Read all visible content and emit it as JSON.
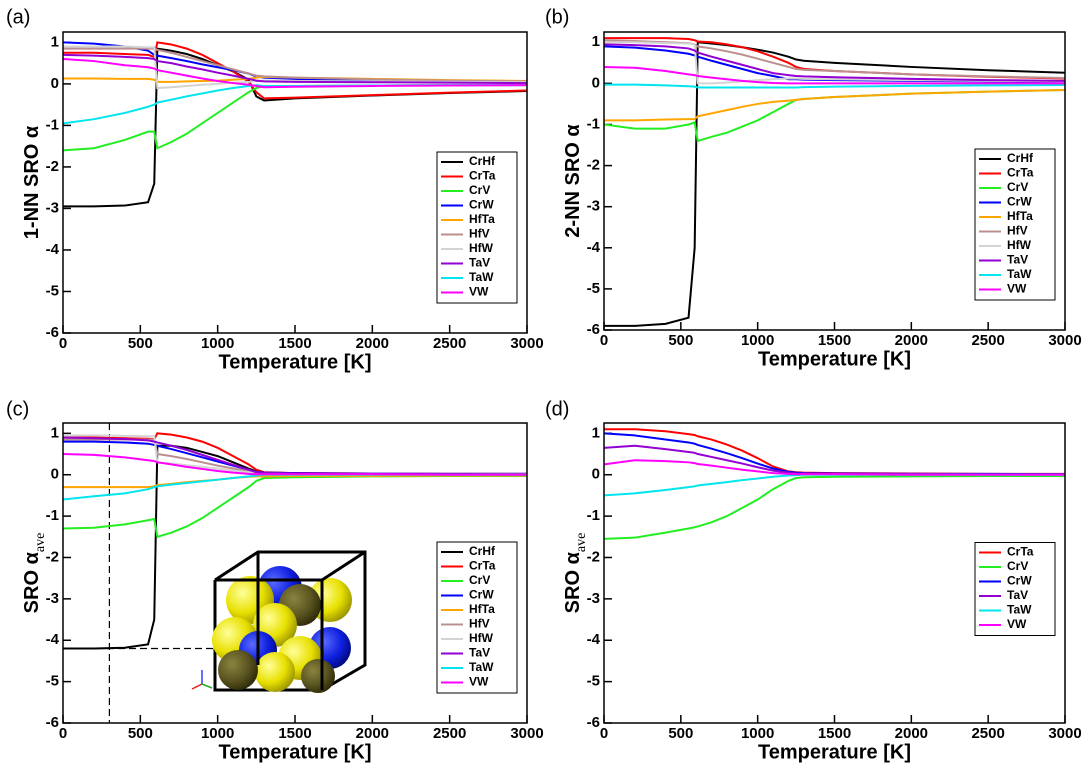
{
  "chart_data": [
    {
      "type": "line",
      "panel_label": "(a)",
      "y_label": "1-NN SRO α",
      "x_label": "Temperature [K]",
      "legend": "lower right",
      "xlim": [
        0,
        3000
      ],
      "ylim": [
        -6,
        1.25
      ],
      "xticks": [
        0,
        500,
        1000,
        1500,
        2000,
        2500,
        3000
      ],
      "yticks": [
        -6,
        -5,
        -4,
        -3,
        -2,
        -1,
        0,
        1
      ],
      "x": [
        0,
        200,
        400,
        550,
        590,
        610,
        700,
        800,
        900,
        1000,
        1100,
        1200,
        1250,
        1300,
        1500,
        2000,
        2500,
        3000
      ],
      "series": [
        {
          "name": "CrHf",
          "color": "#000000",
          "values": [
            -2.95,
            -2.95,
            -2.93,
            -2.85,
            -2.4,
            0.85,
            0.8,
            0.72,
            0.6,
            0.45,
            0.3,
            0.1,
            -0.3,
            -0.4,
            -0.35,
            -0.28,
            -0.22,
            -0.17
          ]
        },
        {
          "name": "CrTa",
          "color": "#ff0000",
          "values": [
            0.75,
            0.75,
            0.72,
            0.7,
            0.65,
            1.0,
            0.95,
            0.85,
            0.7,
            0.5,
            0.3,
            0.05,
            -0.2,
            -0.35,
            -0.33,
            -0.27,
            -0.21,
            -0.16
          ]
        },
        {
          "name": "CrV",
          "color": "#22ee22",
          "values": [
            -1.6,
            -1.55,
            -1.35,
            -1.15,
            -1.15,
            -1.55,
            -1.4,
            -1.2,
            -0.95,
            -0.7,
            -0.45,
            -0.2,
            -0.1,
            -0.05,
            -0.05,
            -0.04,
            -0.03,
            -0.03
          ]
        },
        {
          "name": "CrW",
          "color": "#0000ff",
          "values": [
            1.0,
            0.97,
            0.9,
            0.8,
            0.7,
            0.68,
            0.62,
            0.55,
            0.47,
            0.4,
            0.33,
            0.25,
            0.18,
            0.15,
            0.12,
            0.08,
            0.06,
            0.05
          ]
        },
        {
          "name": "HfTa",
          "color": "#ffa500",
          "values": [
            0.13,
            0.13,
            0.12,
            0.12,
            0.1,
            0.05,
            0.05,
            0.06,
            0.07,
            0.08,
            0.1,
            0.12,
            0.15,
            0.17,
            0.15,
            0.12,
            0.09,
            0.07
          ]
        },
        {
          "name": "HfV",
          "color": "#bc8f8f",
          "values": [
            0.85,
            0.85,
            0.85,
            0.85,
            0.85,
            0.82,
            0.75,
            0.65,
            0.55,
            0.45,
            0.35,
            0.25,
            0.2,
            0.18,
            0.15,
            0.11,
            0.08,
            0.06
          ]
        },
        {
          "name": "HfW",
          "color": "#d3d3d3",
          "values": [
            0.9,
            0.9,
            0.9,
            0.88,
            0.88,
            -0.1,
            -0.08,
            -0.05,
            -0.02,
            0,
            0.03,
            0.05,
            0.07,
            0.08,
            0.07,
            0.06,
            0.05,
            0.04
          ]
        },
        {
          "name": "TaV",
          "color": "#9400d3",
          "values": [
            0.7,
            0.68,
            0.65,
            0.62,
            0.6,
            0.55,
            0.5,
            0.42,
            0.35,
            0.27,
            0.2,
            0.12,
            0.08,
            0.06,
            0.05,
            0.04,
            0.03,
            0.02
          ]
        },
        {
          "name": "TaW",
          "color": "#00e5ee",
          "values": [
            -0.95,
            -0.85,
            -0.7,
            -0.55,
            -0.5,
            -0.45,
            -0.38,
            -0.3,
            -0.23,
            -0.16,
            -0.1,
            -0.05,
            -0.03,
            -0.05,
            -0.05,
            -0.04,
            -0.03,
            -0.03
          ]
        },
        {
          "name": "VW",
          "color": "#ff00ff",
          "values": [
            0.6,
            0.55,
            0.45,
            0.4,
            0.37,
            0.33,
            0.27,
            0.2,
            0.13,
            0.07,
            0.02,
            -0.02,
            -0.05,
            -0.08,
            -0.07,
            -0.05,
            -0.04,
            -0.03
          ]
        }
      ]
    },
    {
      "type": "line",
      "panel_label": "(b)",
      "y_label": "2-NN SRO α",
      "x_label": "Temperature [K]",
      "legend": "lower right",
      "xlim": [
        0,
        3000
      ],
      "ylim": [
        -6,
        1.25
      ],
      "xticks": [
        0,
        500,
        1000,
        1500,
        2000,
        2500,
        3000
      ],
      "yticks": [
        -6,
        -5,
        -4,
        -3,
        -2,
        -1,
        0,
        1
      ],
      "x": [
        0,
        200,
        400,
        550,
        590,
        610,
        700,
        800,
        900,
        1000,
        1100,
        1200,
        1250,
        1300,
        1500,
        2000,
        2500,
        3000
      ],
      "series": [
        {
          "name": "CrHf",
          "color": "#000000",
          "values": [
            -5.9,
            -5.9,
            -5.85,
            -5.7,
            -4,
            1.0,
            0.97,
            0.93,
            0.88,
            0.82,
            0.75,
            0.65,
            0.58,
            0.55,
            0.5,
            0.4,
            0.32,
            0.26
          ]
        },
        {
          "name": "CrTa",
          "color": "#ff0000",
          "values": [
            1.1,
            1.1,
            1.1,
            1.08,
            1.05,
            1.02,
            1.0,
            0.95,
            0.88,
            0.78,
            0.65,
            0.5,
            0.4,
            0.35,
            0.3,
            0.22,
            0.16,
            0.12
          ]
        },
        {
          "name": "CrV",
          "color": "#22ee22",
          "values": [
            -1.0,
            -1.1,
            -1.1,
            -1.0,
            -0.95,
            -1.4,
            -1.3,
            -1.2,
            -1.05,
            -0.9,
            -0.7,
            -0.5,
            -0.4,
            -0.38,
            -0.33,
            -0.25,
            -0.2,
            -0.16
          ]
        },
        {
          "name": "CrW",
          "color": "#0000ff",
          "values": [
            0.9,
            0.87,
            0.8,
            0.72,
            0.68,
            0.65,
            0.55,
            0.45,
            0.35,
            0.25,
            0.18,
            0.1,
            0.1,
            0.09,
            0.08,
            0.06,
            0.05,
            0.04
          ]
        },
        {
          "name": "HfTa",
          "color": "#ffa500",
          "values": [
            -0.9,
            -0.9,
            -0.88,
            -0.87,
            -0.87,
            -0.8,
            -0.73,
            -0.65,
            -0.57,
            -0.5,
            -0.45,
            -0.42,
            -0.4,
            -0.38,
            -0.33,
            -0.25,
            -0.2,
            -0.16
          ]
        },
        {
          "name": "HfV",
          "color": "#bc8f8f",
          "values": [
            1.05,
            1.03,
            1.0,
            0.98,
            0.95,
            0.9,
            0.85,
            0.78,
            0.7,
            0.6,
            0.5,
            0.4,
            0.35,
            0.33,
            0.3,
            0.22,
            0.17,
            0.13
          ]
        },
        {
          "name": "HfW",
          "color": "#d3d3d3",
          "values": [
            1.0,
            1.0,
            0.98,
            0.97,
            0.95,
            0.0,
            0.0,
            0.02,
            0.05,
            0.08,
            0.1,
            0.12,
            0.12,
            0.11,
            0.1,
            0.08,
            0.06,
            0.05
          ]
        },
        {
          "name": "TaV",
          "color": "#9400d3",
          "values": [
            0.95,
            0.93,
            0.9,
            0.85,
            0.8,
            0.75,
            0.65,
            0.55,
            0.45,
            0.35,
            0.25,
            0.2,
            0.18,
            0.17,
            0.15,
            0.11,
            0.08,
            0.06
          ]
        },
        {
          "name": "TaW",
          "color": "#00e5ee",
          "values": [
            -0.03,
            -0.03,
            -0.05,
            -0.07,
            -0.08,
            -0.1,
            -0.1,
            -0.1,
            -0.1,
            -0.1,
            -0.1,
            -0.1,
            -0.1,
            -0.09,
            -0.08,
            -0.06,
            -0.05,
            -0.04
          ]
        },
        {
          "name": "VW",
          "color": "#ff00ff",
          "values": [
            0.4,
            0.38,
            0.3,
            0.22,
            0.2,
            0.18,
            0.14,
            0.1,
            0.06,
            0.03,
            0.01,
            0,
            0,
            0,
            0,
            0,
            0,
            0
          ]
        }
      ]
    },
    {
      "type": "line",
      "panel_label": "(c)",
      "y_label": "SRO α",
      "y_label_subscript": "ave",
      "x_label": "Temperature [K]",
      "legend": "lower right",
      "xlim": [
        0,
        3000
      ],
      "ylim": [
        -6,
        1.25
      ],
      "xticks": [
        0,
        500,
        1000,
        1500,
        2000,
        2500,
        3000
      ],
      "yticks": [
        -6,
        -5,
        -4,
        -3,
        -2,
        -1,
        0,
        1
      ],
      "reference_lines": {
        "x": 300,
        "y": -4.2
      },
      "x": [
        0,
        200,
        400,
        550,
        590,
        610,
        700,
        800,
        900,
        1000,
        1100,
        1200,
        1250,
        1300,
        1500,
        2000,
        2500,
        3000
      ],
      "series": [
        {
          "name": "CrHf",
          "color": "#000000",
          "values": [
            -4.2,
            -4.2,
            -4.18,
            -4.1,
            -3.5,
            0.7,
            0.7,
            0.65,
            0.55,
            0.45,
            0.3,
            0.15,
            0.08,
            0.05,
            0.04,
            0.03,
            0.02,
            0.02
          ]
        },
        {
          "name": "CrTa",
          "color": "#ff0000",
          "values": [
            0.9,
            0.9,
            0.88,
            0.87,
            0.86,
            1.0,
            0.97,
            0.9,
            0.8,
            0.65,
            0.45,
            0.25,
            0.12,
            0.06,
            0.04,
            0.03,
            0.02,
            0.02
          ]
        },
        {
          "name": "CrV",
          "color": "#22ee22",
          "values": [
            -1.3,
            -1.28,
            -1.2,
            -1.1,
            -1.07,
            -1.5,
            -1.4,
            -1.25,
            -1.05,
            -0.8,
            -0.55,
            -0.3,
            -0.15,
            -0.08,
            -0.06,
            -0.04,
            -0.03,
            -0.03
          ]
        },
        {
          "name": "CrW",
          "color": "#0000ff",
          "values": [
            0.8,
            0.8,
            0.78,
            0.75,
            0.72,
            0.7,
            0.62,
            0.52,
            0.42,
            0.32,
            0.22,
            0.12,
            0.07,
            0.05,
            0.04,
            0.03,
            0.02,
            0.02
          ]
        },
        {
          "name": "HfTa",
          "color": "#ffa500",
          "values": [
            -0.3,
            -0.3,
            -0.3,
            -0.3,
            -0.28,
            -0.25,
            -0.22,
            -0.18,
            -0.15,
            -0.12,
            -0.08,
            -0.05,
            -0.04,
            -0.04,
            -0.03,
            -0.03,
            -0.02,
            -0.02
          ]
        },
        {
          "name": "HfV",
          "color": "#bc8f8f",
          "values": [
            0.85,
            0.85,
            0.85,
            0.85,
            0.85,
            0.5,
            0.45,
            0.38,
            0.3,
            0.22,
            0.15,
            0.08,
            0.05,
            0.04,
            0.03,
            0.02,
            0.02,
            0.01
          ]
        },
        {
          "name": "HfW",
          "color": "#d3d3d3",
          "values": [
            0.95,
            0.95,
            0.94,
            0.93,
            0.93,
            0.3,
            0.27,
            0.23,
            0.19,
            0.15,
            0.1,
            0.06,
            0.04,
            0.03,
            0.03,
            0.02,
            0.02,
            0.01
          ]
        },
        {
          "name": "TaV",
          "color": "#9400d3",
          "values": [
            0.9,
            0.88,
            0.86,
            0.83,
            0.8,
            0.78,
            0.7,
            0.6,
            0.48,
            0.36,
            0.24,
            0.12,
            0.06,
            0.04,
            0.03,
            0.02,
            0.02,
            0.01
          ]
        },
        {
          "name": "TaW",
          "color": "#00e5ee",
          "values": [
            -0.6,
            -0.52,
            -0.45,
            -0.35,
            -0.3,
            -0.28,
            -0.24,
            -0.2,
            -0.16,
            -0.12,
            -0.08,
            -0.04,
            -0.02,
            0,
            0,
            0,
            0,
            0
          ]
        },
        {
          "name": "VW",
          "color": "#ff00ff",
          "values": [
            0.5,
            0.48,
            0.42,
            0.35,
            0.33,
            0.3,
            0.25,
            0.19,
            0.14,
            0.09,
            0.05,
            0.02,
            0.01,
            0.01,
            0.01,
            0.01,
            0,
            0
          ]
        }
      ]
    },
    {
      "type": "line",
      "panel_label": "(d)",
      "y_label": "SRO α",
      "y_label_subscript": "ave",
      "x_label": "Temperature [K]",
      "legend": "center right",
      "xlim": [
        0,
        3000
      ],
      "ylim": [
        -6,
        1.25
      ],
      "xticks": [
        0,
        500,
        1000,
        1500,
        2000,
        2500,
        3000
      ],
      "yticks": [
        -6,
        -5,
        -4,
        -3,
        -2,
        -1,
        0,
        1
      ],
      "x": [
        0,
        200,
        400,
        550,
        590,
        610,
        700,
        800,
        900,
        1000,
        1100,
        1200,
        1250,
        1300,
        1500,
        2000,
        2500,
        3000
      ],
      "series": [
        {
          "name": "CrTa",
          "color": "#ff0000",
          "values": [
            1.1,
            1.1,
            1.05,
            0.98,
            0.96,
            0.93,
            0.85,
            0.73,
            0.58,
            0.4,
            0.2,
            0.08,
            0.06,
            0.05,
            0.04,
            0.03,
            0.02,
            0.02
          ]
        },
        {
          "name": "CrV",
          "color": "#22ee22",
          "values": [
            -1.55,
            -1.52,
            -1.4,
            -1.3,
            -1.27,
            -1.25,
            -1.15,
            -1.0,
            -0.8,
            -0.6,
            -0.35,
            -0.15,
            -0.08,
            -0.06,
            -0.05,
            -0.04,
            -0.03,
            -0.03
          ]
        },
        {
          "name": "CrW",
          "color": "#0000ff",
          "values": [
            1.0,
            0.95,
            0.85,
            0.78,
            0.75,
            0.72,
            0.63,
            0.52,
            0.4,
            0.27,
            0.15,
            0.07,
            0.05,
            0.04,
            0.03,
            0.02,
            0.02,
            0.01
          ]
        },
        {
          "name": "TaV",
          "color": "#9400d3",
          "values": [
            0.65,
            0.7,
            0.62,
            0.55,
            0.53,
            0.5,
            0.43,
            0.35,
            0.27,
            0.18,
            0.1,
            0.05,
            0.03,
            0.03,
            0.02,
            0.02,
            0.01,
            0.01
          ]
        },
        {
          "name": "TaW",
          "color": "#00e5ee",
          "values": [
            -0.5,
            -0.45,
            -0.37,
            -0.3,
            -0.28,
            -0.26,
            -0.22,
            -0.18,
            -0.13,
            -0.09,
            -0.05,
            -0.02,
            -0.01,
            0,
            0,
            0,
            0,
            0
          ]
        },
        {
          "name": "VW",
          "color": "#ff00ff",
          "values": [
            0.25,
            0.35,
            0.33,
            0.3,
            0.28,
            0.26,
            0.22,
            0.17,
            0.12,
            0.08,
            0.04,
            0.02,
            0.01,
            0.01,
            0.01,
            0,
            0,
            0
          ]
        }
      ]
    }
  ]
}
